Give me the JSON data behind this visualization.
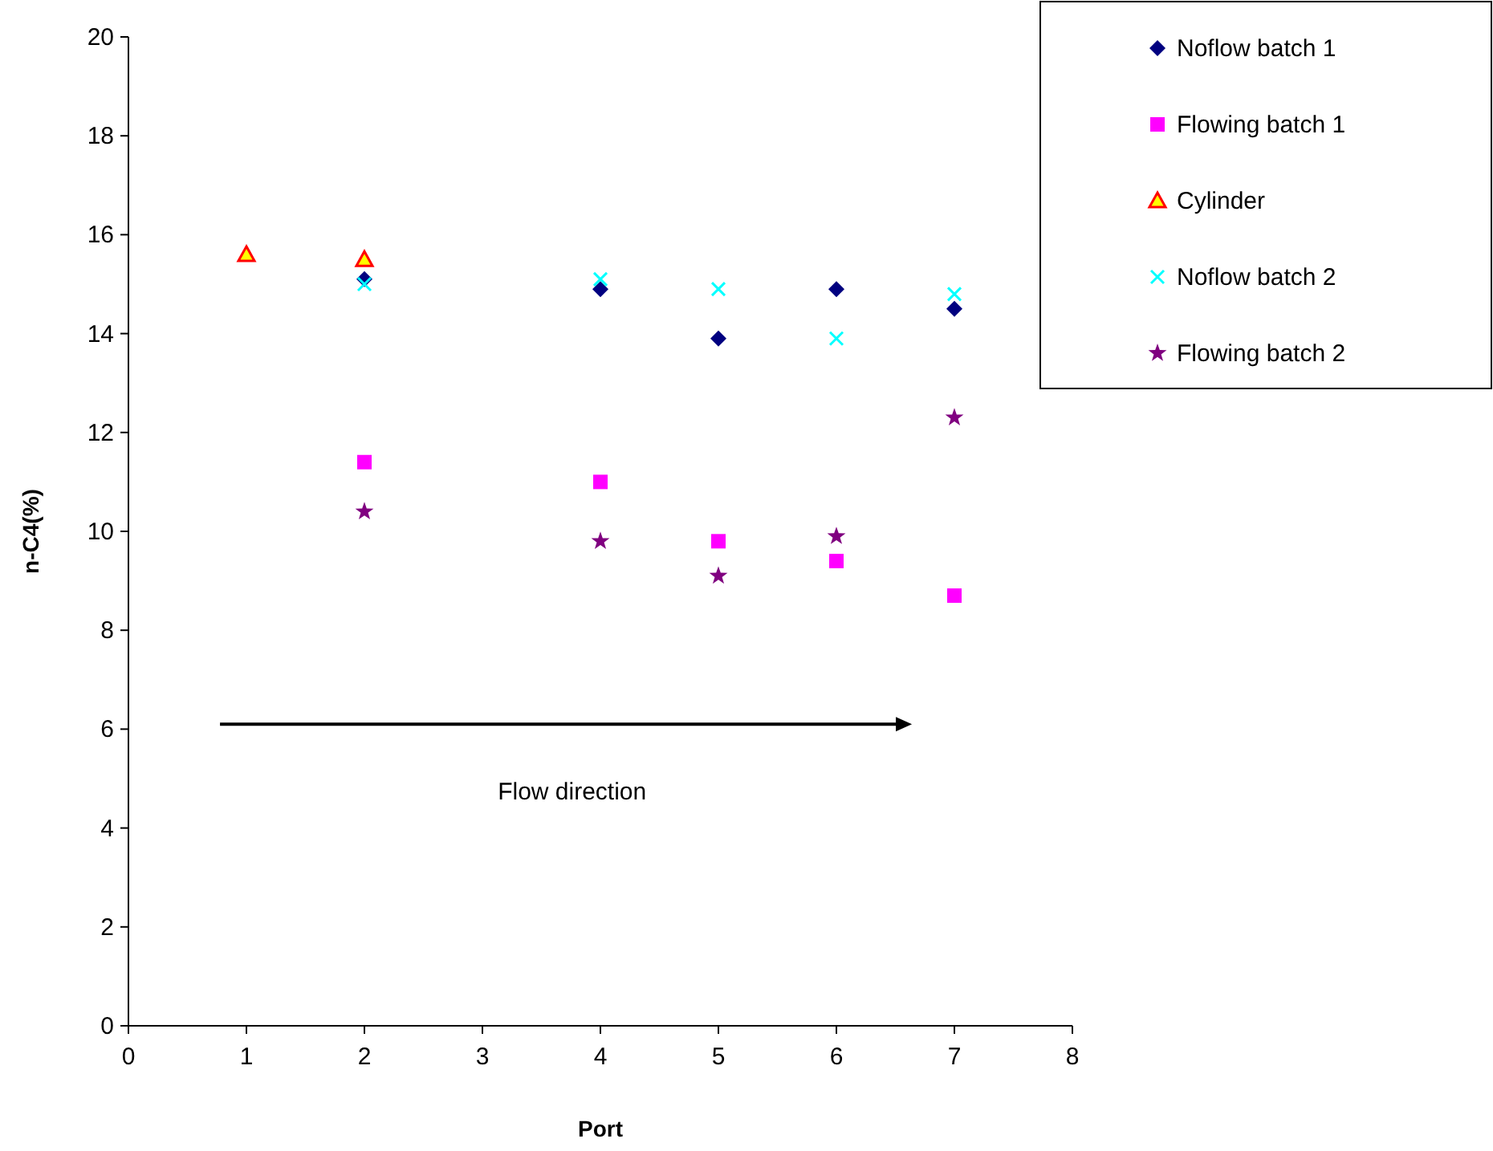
{
  "chart_data": {
    "type": "scatter",
    "xlabel": "Port",
    "ylabel": "n-C4(%)",
    "xlim": [
      0,
      8
    ],
    "ylim": [
      0,
      20
    ],
    "xticks": [
      0,
      1,
      2,
      3,
      4,
      5,
      6,
      7,
      8
    ],
    "yticks": [
      0,
      2,
      4,
      6,
      8,
      10,
      12,
      14,
      16,
      18,
      20
    ],
    "grid": false,
    "legend": "top right",
    "annotations": [
      "Flow direction"
    ],
    "series": [
      {
        "name": "Noflow batch 1",
        "color": "#000080",
        "marker": "diamond",
        "x": [
          2,
          4,
          5,
          6,
          7
        ],
        "values": [
          15.1,
          14.9,
          13.9,
          14.9,
          14.5
        ]
      },
      {
        "name": "Flowing batch 1",
        "color": "#ff00ff",
        "marker": "square",
        "x": [
          2,
          4,
          5,
          6,
          7
        ],
        "values": [
          11.4,
          11.0,
          9.8,
          9.4,
          8.7
        ]
      },
      {
        "name": "Cylinder",
        "color": "#ffff00",
        "marker": "triangle",
        "x": [
          1,
          2
        ],
        "values": [
          15.6,
          15.5
        ]
      },
      {
        "name": "Noflow batch 2",
        "color": "#00ffff",
        "marker": "cross",
        "x": [
          2,
          4,
          5,
          6,
          7
        ],
        "values": [
          15.0,
          15.1,
          14.9,
          13.9,
          14.8
        ]
      },
      {
        "name": "Flowing batch 2",
        "color": "#800080",
        "marker": "star",
        "x": [
          2,
          4,
          5,
          6,
          7
        ],
        "values": [
          10.4,
          9.8,
          9.1,
          9.9,
          12.3
        ]
      }
    ]
  }
}
